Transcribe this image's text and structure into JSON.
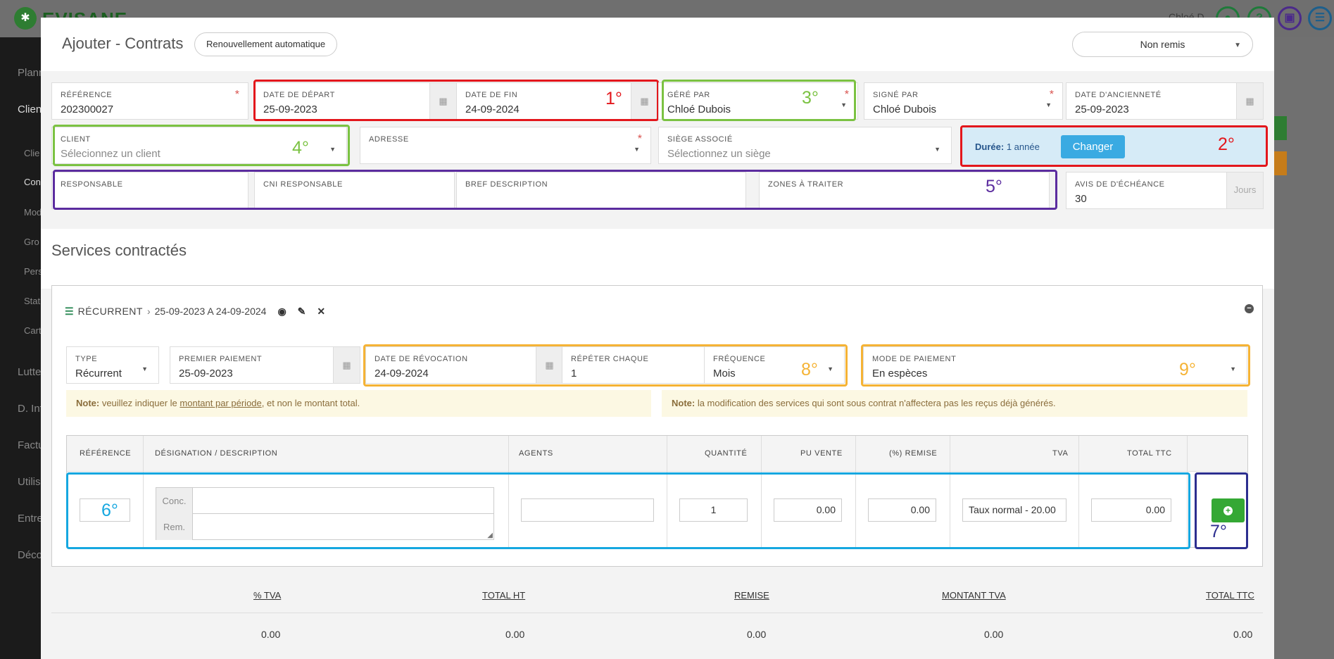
{
  "background": {
    "brand": "EVISANE",
    "user": "Chloé D.",
    "side_items": [
      "Plann",
      "Clien",
      "Clie",
      "Con",
      "Mod",
      "Gro",
      "Pers",
      "Stat",
      "Cart",
      "Lutte",
      "D. Inf",
      "Factu",
      "Utilis",
      "Entre",
      "Déco"
    ]
  },
  "modal": {
    "title": "Ajouter - Contrats",
    "auto_renew_label": "Renouvellement automatique",
    "status_value": "Non remis"
  },
  "fields": {
    "reference": {
      "label": "Référence",
      "value": "202300027"
    },
    "start_date": {
      "label": "Date de départ",
      "value": "25-09-2023"
    },
    "end_date": {
      "label": "Date de fin",
      "value": "24-09-2024"
    },
    "managed_by": {
      "label": "Géré par",
      "value": "Chloé Dubois"
    },
    "signed_by": {
      "label": "Signé par",
      "value": "Chloé Dubois"
    },
    "seniority_date": {
      "label": "Date d'ancienneté",
      "value": "25-09-2023"
    },
    "client": {
      "label": "Client",
      "placeholder": "Sélecionnez un client"
    },
    "address": {
      "label": "Adresse"
    },
    "site": {
      "label": "Siège associé",
      "placeholder": "Sélectionnez un siège"
    },
    "responsible": {
      "label": "Responsable"
    },
    "cni_responsible": {
      "label": "CNI Responsable"
    },
    "brief": {
      "label": "Bref description"
    },
    "zones": {
      "label": "Zones à traiter"
    },
    "expiry_notice": {
      "label": "Avis de d'échéance",
      "value": "30",
      "unit": "Jours"
    }
  },
  "duration": {
    "label": "Durée:",
    "value": "1 année",
    "button": "Changer"
  },
  "services": {
    "title": "Services contractés",
    "panel": {
      "type_label": "Récurrent",
      "range": "25-09-2023 A 24-09-2024"
    },
    "type": {
      "label": "Type",
      "value": "Récurrent"
    },
    "first_payment": {
      "label": "Premier paiement",
      "value": "25-09-2023"
    },
    "revocation_date": {
      "label": "Date de révocation",
      "value": "24-09-2024"
    },
    "repeat_every": {
      "label": "Répéter chaque",
      "value": "1"
    },
    "frequency": {
      "label": "Fréquence",
      "value": "Mois"
    },
    "payment_mode": {
      "label": "Mode de paiement",
      "value": "En espèces"
    },
    "note1": {
      "bold": "Note:",
      "before": " veuillez indiquer le ",
      "link": "montant par période",
      "after": ", et non le montant total."
    },
    "note2": {
      "bold": "Note:",
      "text": " la modification des services qui sont sous contrat n'affectera pas les reçus déjà générés."
    },
    "table": {
      "headers": [
        "Référence",
        "Désignation / Description",
        "Agents",
        "Quantité",
        "PU vente",
        "(%) Remise",
        "TVA",
        "Total TTC"
      ],
      "conc_label": "Conc.",
      "rem_label": "Rem.",
      "quantity": "1",
      "pu": "0.00",
      "remise": "0.00",
      "tva": "Taux normal - 20.00",
      "total": "0.00"
    }
  },
  "totals": {
    "headers": [
      "% TVA",
      "TOTAL HT",
      "REMISE",
      "MONTANT TVA",
      "TOTAL TTC"
    ],
    "values": [
      "0.00",
      "0.00",
      "0.00",
      "0.00",
      "0.00"
    ]
  },
  "annotations": [
    "1°",
    "2°",
    "3°",
    "4°",
    "5°",
    "6°",
    "7°",
    "8°",
    "9°"
  ]
}
